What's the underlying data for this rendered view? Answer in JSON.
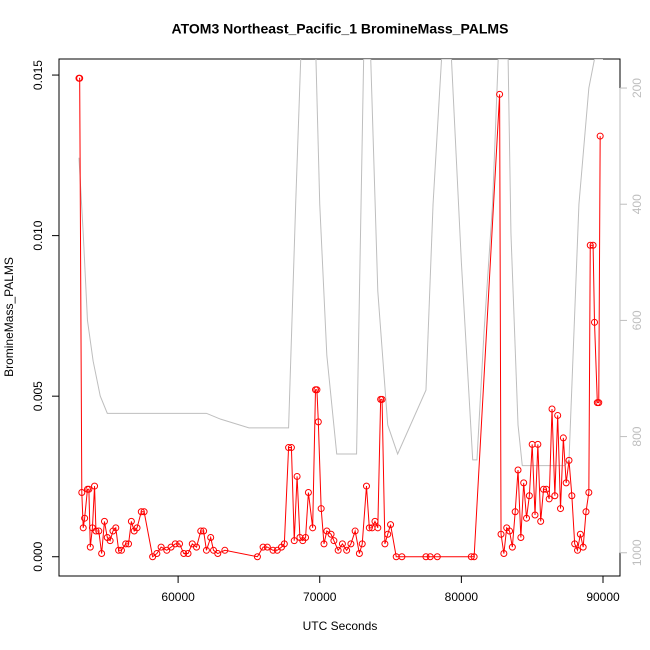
{
  "chart_data": {
    "type": "line",
    "title": "ATOM3 Northeast_Pacific_1 BromineMass_PALMS",
    "x_label": "UTC Seconds",
    "y_label": "BromineMass_PALMS",
    "xlim": [
      51590,
      91200
    ],
    "ylim": [
      -0.0006,
      0.0155
    ],
    "y2lim": [
      1040,
      150
    ],
    "xticks": [
      60000,
      70000,
      80000,
      90000
    ],
    "yticks": [
      {
        "value": 0,
        "label": "0.000"
      },
      {
        "value": 0.005,
        "label": "0.005"
      },
      {
        "value": 0.01,
        "label": "0.010"
      },
      {
        "value": 0.015,
        "label": "0.015"
      }
    ],
    "y2ticks": [
      200,
      400,
      600,
      800,
      1000
    ],
    "series": [
      {
        "color": "#bebebe",
        "axis": "y2",
        "markers": false,
        "x": [
          53000,
          53300,
          53600,
          54000,
          54500,
          55000,
          58000,
          62000,
          63000,
          65000,
          67800,
          68300,
          68700,
          69700,
          70000,
          70500,
          71200,
          71800,
          72600,
          73100,
          73600,
          74100,
          74800,
          75500,
          77500,
          78000,
          78600,
          79300,
          80000,
          80800,
          81100,
          81600,
          82200,
          82600,
          83300,
          83500,
          84000,
          84300,
          87300,
          87600,
          88300,
          89000,
          89400,
          90000
        ],
        "values": [
          320,
          450,
          600,
          670,
          730,
          760,
          760,
          760,
          770,
          785,
          785,
          400,
          120,
          120,
          400,
          660,
          830,
          830,
          830,
          150,
          150,
          550,
          780,
          830,
          720,
          400,
          150,
          150,
          500,
          840,
          840,
          620,
          400,
          150,
          150,
          450,
          780,
          850,
          850,
          840,
          400,
          200,
          150,
          150
        ]
      },
      {
        "color": "#ff0000",
        "axis": "y",
        "markers": true,
        "x": [
          53000,
          53050,
          53200,
          53300,
          53400,
          53600,
          53700,
          53800,
          53950,
          54100,
          54200,
          54400,
          54600,
          54800,
          55000,
          55200,
          55400,
          55600,
          55800,
          56000,
          56300,
          56500,
          56700,
          56900,
          57100,
          57400,
          57600,
          58200,
          58500,
          58800,
          59200,
          59500,
          59800,
          60100,
          60400,
          60700,
          61000,
          61300,
          61600,
          61800,
          62000,
          62300,
          62500,
          62800,
          63300,
          65600,
          66000,
          66300,
          66700,
          67000,
          67300,
          67500,
          67800,
          68000,
          68200,
          68400,
          68600,
          68800,
          69000,
          69200,
          69500,
          69700,
          69800,
          69900,
          70100,
          70300,
          70500,
          70800,
          71000,
          71300,
          71600,
          71900,
          72200,
          72500,
          72800,
          73000,
          73300,
          73500,
          73700,
          73900,
          74100,
          74300,
          74400,
          74600,
          74800,
          75000,
          75400,
          75800,
          77500,
          77800,
          78300,
          80700,
          80900,
          82700,
          82800,
          83000,
          83200,
          83400,
          83600,
          83800,
          84000,
          84200,
          84400,
          84600,
          84800,
          85000,
          85200,
          85400,
          85600,
          85800,
          86000,
          86200,
          86400,
          86600,
          86800,
          87000,
          87200,
          87400,
          87600,
          87800,
          88000,
          88200,
          88400,
          88600,
          88800,
          89000,
          89100,
          89300,
          89400,
          89600,
          89700,
          89800
        ],
        "values": [
          0.0149,
          0.0149,
          0.002,
          0.0009,
          0.0012,
          0.0021,
          0.0021,
          0.0003,
          0.0009,
          0.0022,
          0.0008,
          0.0008,
          0.0001,
          0.0011,
          0.0006,
          0.0005,
          0.0008,
          0.0009,
          0.0002,
          0.0002,
          0.0004,
          0.0004,
          0.0011,
          0.0008,
          0.0009,
          0.0014,
          0.0014,
          0,
          0.0001,
          0.0003,
          0.0002,
          0.0003,
          0.0004,
          0.0004,
          0.0001,
          0.0001,
          0.0004,
          0.0003,
          0.0008,
          0.0008,
          0.0002,
          0.0006,
          0.0002,
          0.0001,
          0.0002,
          0,
          0.0003,
          0.0003,
          0.0002,
          0.0002,
          0.0003,
          0.0004,
          0.0034,
          0.0034,
          0.0005,
          0.0025,
          0.0006,
          0.0005,
          0.0006,
          0.002,
          0.0009,
          0.0052,
          0.0052,
          0.0042,
          0.0015,
          0.0004,
          0.0008,
          0.0007,
          0.0005,
          0.0002,
          0.0004,
          0.0002,
          0.0004,
          0.0008,
          0.0001,
          0.0004,
          0.0022,
          0.0009,
          0.0009,
          0.0011,
          0.0009,
          0.0049,
          0.0049,
          0.0004,
          0.0007,
          0.001,
          0,
          0,
          0,
          0,
          0,
          0,
          0,
          0.0144,
          0.0007,
          0.0001,
          0.0009,
          0.0008,
          0.0003,
          0.0014,
          0.0027,
          0.0006,
          0.0023,
          0.0012,
          0.0019,
          0.0035,
          0.0013,
          0.0035,
          0.0011,
          0.0021,
          0.0021,
          0.0018,
          0.0046,
          0.0019,
          0.0044,
          0.0015,
          0.0037,
          0.0023,
          0.003,
          0.0019,
          0.0004,
          0.0002,
          0.0007,
          0.0003,
          0.0014,
          0.002,
          0.0097,
          0.0097,
          0.0073,
          0.0048,
          0.0048,
          0.0131
        ]
      }
    ]
  }
}
